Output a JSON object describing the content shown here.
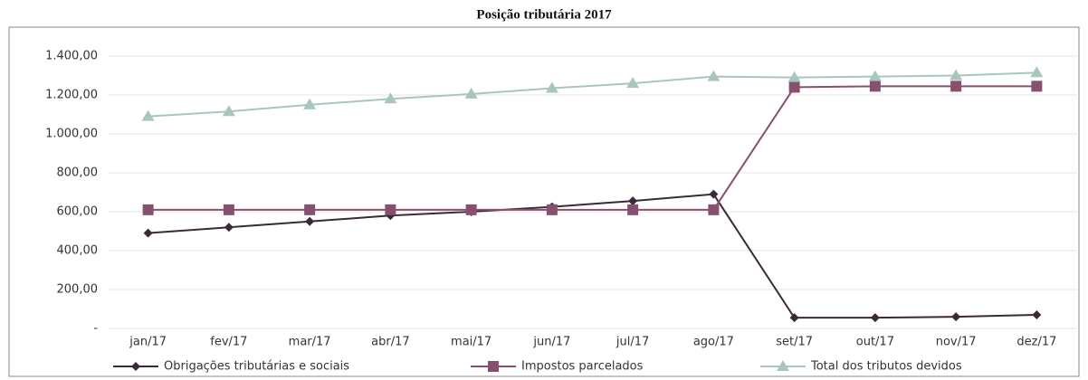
{
  "chart_data": {
    "type": "line",
    "title": "Posição tributária 2017",
    "categories": [
      "jan/17",
      "fev/17",
      "mar/17",
      "abr/17",
      "mai/17",
      "jun/17",
      "jul/17",
      "ago/17",
      "set/17",
      "out/17",
      "nov/17",
      "dez/17"
    ],
    "series": [
      {
        "name": "Obrigações tributárias e sociais",
        "color": "#3a2a38",
        "marker": "diamond",
        "values": [
          490,
          520,
          550,
          580,
          600,
          625,
          655,
          690,
          55,
          55,
          60,
          70
        ]
      },
      {
        "name": "Impostos parcelados",
        "color": "#86506e",
        "marker": "square",
        "values": [
          610,
          610,
          610,
          610,
          610,
          610,
          610,
          610,
          1240,
          1245,
          1245,
          1245
        ]
      },
      {
        "name": "Total dos tributos devidos",
        "color": "#a9c6bc",
        "marker": "triangle",
        "values": [
          1090,
          1115,
          1150,
          1180,
          1205,
          1235,
          1260,
          1295,
          1290,
          1295,
          1300,
          1315
        ]
      }
    ],
    "ylim": [
      0,
      1400
    ],
    "yticks": [
      {
        "value": 0,
        "label": "-"
      },
      {
        "value": 200,
        "label": "200,00"
      },
      {
        "value": 400,
        "label": "400,00"
      },
      {
        "value": 600,
        "label": "600,00"
      },
      {
        "value": 800,
        "label": "800,00"
      },
      {
        "value": 1000,
        "label": "1.000,00"
      },
      {
        "value": 1200,
        "label": "1.200,00"
      },
      {
        "value": 1400,
        "label": "1.400,00"
      }
    ],
    "grid": true,
    "legend": "bottom"
  }
}
